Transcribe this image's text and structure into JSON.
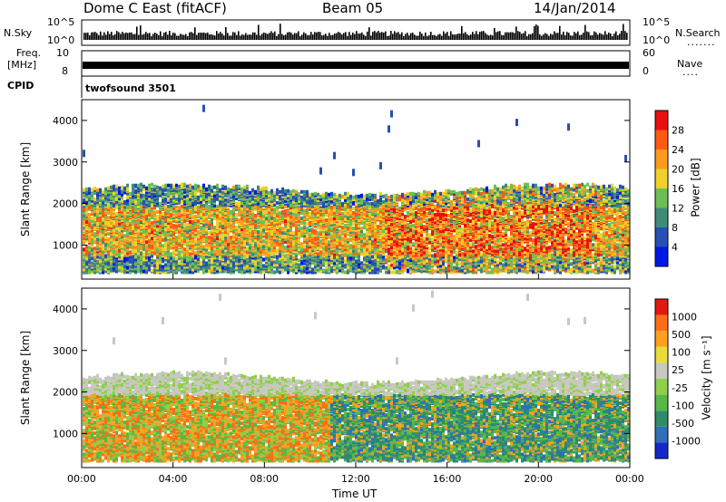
{
  "header": {
    "station": "Dome C East (fitACF)",
    "beam": "Beam 05",
    "date": "14/Jan/2014"
  },
  "strip_labels": {
    "nsky": "N.Sky",
    "nsky_ticks": [
      "10^5",
      "10^0"
    ],
    "nsearch": "N.Search",
    "nsearch_ticks": [
      "10^5",
      "10^0"
    ],
    "freq_l1": "Freq.",
    "freq_l2": "[MHz]",
    "freq_ticks": [
      "10",
      "8"
    ],
    "nave": "Nave",
    "nave_ticks": [
      "60",
      "0"
    ],
    "cpid": "CPID",
    "cpid_value": "twofsound 3501"
  },
  "colors": {
    "power_scale": [
      "#0018e8",
      "#2a4fb2",
      "#3e8b78",
      "#6dbf55",
      "#f0d02a",
      "#ff9a1e",
      "#ff5a14",
      "#e81010"
    ],
    "velocity_scale": [
      "#1428c8",
      "#2f6fb8",
      "#2e8c6a",
      "#56b848",
      "#8fcf4a",
      "#c8c8c0",
      "#e9dc3a",
      "#ffa01e",
      "#ff6e14",
      "#e11a10"
    ]
  },
  "chart_data": [
    {
      "type": "heatmap",
      "title": "",
      "xlabel": "Time UT",
      "ylabel": "Slant Range [km]",
      "x_ticks": [
        "00:00",
        "04:00",
        "08:00",
        "12:00",
        "16:00",
        "20:00",
        "00:00"
      ],
      "y_ticks": [
        "1000",
        "2000",
        "3000",
        "4000"
      ],
      "ylim": [
        180,
        4500
      ],
      "colorbar": {
        "label": "Power [dB]",
        "ticks": [
          "28",
          "24",
          "20",
          "16",
          "12",
          "8",
          "4"
        ],
        "range": [
          0,
          30
        ]
      },
      "echo_band_km": [
        300,
        2500
      ]
    },
    {
      "type": "heatmap",
      "title": "",
      "xlabel": "Time UT",
      "ylabel": "Slant Range [km]",
      "x_ticks": [
        "00:00",
        "04:00",
        "08:00",
        "12:00",
        "16:00",
        "20:00",
        "00:00"
      ],
      "y_ticks": [
        "1000",
        "2000",
        "3000",
        "4000"
      ],
      "ylim": [
        180,
        4500
      ],
      "colorbar": {
        "label": "Velocity [m s⁻¹]",
        "ticks": [
          "1000",
          "500",
          "100",
          "25",
          "-25",
          "-100",
          "-500",
          "-1000"
        ]
      },
      "echo_band_km": [
        300,
        2500
      ]
    }
  ],
  "time_label": "Time UT"
}
